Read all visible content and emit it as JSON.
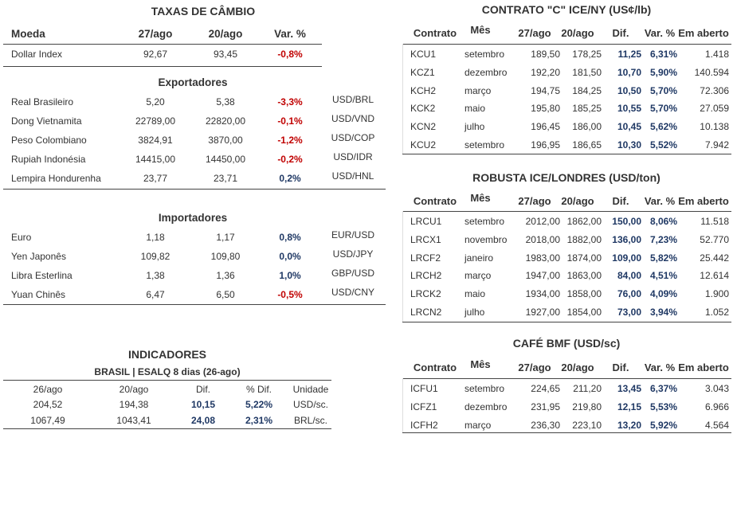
{
  "fx": {
    "title": "TAXAS DE CÂMBIO",
    "headers": [
      "Moeda",
      "27/ago",
      "20/ago",
      "Var. %"
    ],
    "dollar_index": {
      "name": "Dollar Index",
      "a": "92,67",
      "b": "93,45",
      "var": "-0,8%",
      "neg": true,
      "code": ""
    },
    "exportadores_title": "Exportadores",
    "exportadores": [
      {
        "name": "Real Brasileiro",
        "a": "5,20",
        "b": "5,38",
        "var": "-3,3%",
        "neg": true,
        "code": "USD/BRL"
      },
      {
        "name": "Dong Vietnamita",
        "a": "22789,00",
        "b": "22820,00",
        "var": "-0,1%",
        "neg": true,
        "code": "USD/VND"
      },
      {
        "name": "Peso Colombiano",
        "a": "3824,91",
        "b": "3870,00",
        "var": "-1,2%",
        "neg": true,
        "code": "USD/COP"
      },
      {
        "name": "Rupiah Indonésia",
        "a": "14415,00",
        "b": "14450,00",
        "var": "-0,2%",
        "neg": true,
        "code": "USD/IDR"
      },
      {
        "name": "Lempira Hondurenha",
        "a": "23,77",
        "b": "23,71",
        "var": "0,2%",
        "neg": false,
        "code": "USD/HNL"
      }
    ],
    "importadores_title": "Importadores",
    "importadores": [
      {
        "name": "Euro",
        "a": "1,18",
        "b": "1,17",
        "var": "0,8%",
        "neg": false,
        "code": "EUR/USD"
      },
      {
        "name": "Yen Japonês",
        "a": "109,82",
        "b": "109,80",
        "var": "0,0%",
        "neg": false,
        "code": "USD/JPY"
      },
      {
        "name": "Libra Esterlina",
        "a": "1,38",
        "b": "1,36",
        "var": "1,0%",
        "neg": false,
        "code": "GBP/USD"
      },
      {
        "name": "Yuan Chinês",
        "a": "6,47",
        "b": "6,50",
        "var": "-0,5%",
        "neg": true,
        "code": "USD/CNY"
      }
    ]
  },
  "indicadores": {
    "title": "INDICADORES",
    "subtitle": "BRASIL | ESALQ 8 dias (26-ago)",
    "headers": [
      "26/ago",
      "20/ago",
      "Dif.",
      "% Dif.",
      "Unidade"
    ],
    "rows": [
      {
        "a": "204,52",
        "b": "194,38",
        "dif": "10,15",
        "pct": "5,22%",
        "unit": "USD/sc."
      },
      {
        "a": "1067,49",
        "b": "1043,41",
        "dif": "24,08",
        "pct": "2,31%",
        "unit": "BRL/sc."
      }
    ]
  },
  "markets": [
    {
      "title": "CONTRATO \"C\" ICE/NY (US¢/lb)",
      "headers": [
        "Contrato",
        "Mês",
        "27/ago",
        "20/ago",
        "Dif.",
        "Var. %",
        "Em aberto"
      ],
      "rows": [
        [
          "KCU1",
          "setembro",
          "189,50",
          "178,25",
          "11,25",
          "6,31%",
          "1.418"
        ],
        [
          "KCZ1",
          "dezembro",
          "192,20",
          "181,50",
          "10,70",
          "5,90%",
          "140.594"
        ],
        [
          "KCH2",
          "março",
          "194,75",
          "184,25",
          "10,50",
          "5,70%",
          "72.306"
        ],
        [
          "KCK2",
          "maio",
          "195,80",
          "185,25",
          "10,55",
          "5,70%",
          "27.059"
        ],
        [
          "KCN2",
          "julho",
          "196,45",
          "186,00",
          "10,45",
          "5,62%",
          "10.138"
        ],
        [
          "KCU2",
          "setembro",
          "196,95",
          "186,65",
          "10,30",
          "5,52%",
          "7.942"
        ]
      ]
    },
    {
      "title": "ROBUSTA ICE/LONDRES (USD/ton)",
      "headers": [
        "Contrato",
        "Mês",
        "27/ago",
        "20/ago",
        "Dif.",
        "Var. %",
        "Em aberto"
      ],
      "rows": [
        [
          "LRCU1",
          "setembro",
          "2012,00",
          "1862,00",
          "150,00",
          "8,06%",
          "11.518"
        ],
        [
          "LRCX1",
          "novembro",
          "2018,00",
          "1882,00",
          "136,00",
          "7,23%",
          "52.770"
        ],
        [
          "LRCF2",
          "janeiro",
          "1983,00",
          "1874,00",
          "109,00",
          "5,82%",
          "25.442"
        ],
        [
          "LRCH2",
          "março",
          "1947,00",
          "1863,00",
          "84,00",
          "4,51%",
          "12.614"
        ],
        [
          "LRCK2",
          "maio",
          "1934,00",
          "1858,00",
          "76,00",
          "4,09%",
          "1.900"
        ],
        [
          "LRCN2",
          "julho",
          "1927,00",
          "1854,00",
          "73,00",
          "3,94%",
          "1.052"
        ]
      ]
    },
    {
      "title": "CAFÉ BMF (USD/sc)",
      "headers": [
        "Contrato",
        "Mês",
        "27/ago",
        "20/ago",
        "Dif.",
        "Var. %",
        "Em aberto"
      ],
      "rows": [
        [
          "ICFU1",
          "setembro",
          "224,65",
          "211,20",
          "13,45",
          "6,37%",
          "3.043"
        ],
        [
          "ICFZ1",
          "dezembro",
          "231,95",
          "219,80",
          "12,15",
          "5,53%",
          "6.966"
        ],
        [
          "ICFH2",
          "março",
          "236,30",
          "223,10",
          "13,20",
          "5,92%",
          "4.564"
        ]
      ]
    }
  ]
}
